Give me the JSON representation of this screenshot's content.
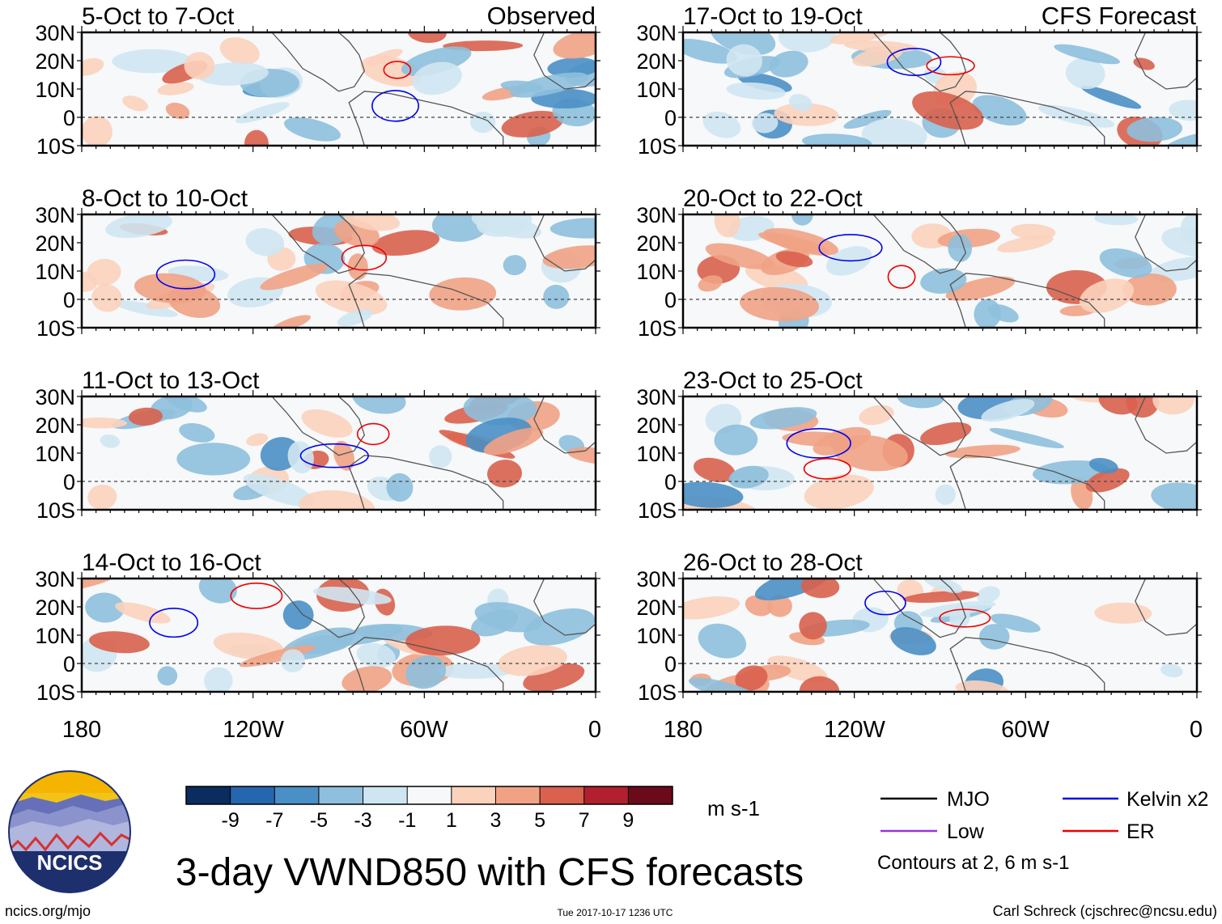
{
  "figure": {
    "title": "3-day VWND850 with CFS forecasts",
    "website": "ncics.org/mjo",
    "timestamp": "Tue 2017-10-17 1236 UTC",
    "author": "Carl Schreck (cjschrec@ncsu.edu)",
    "logo_text": "NCICS"
  },
  "columns": {
    "left_header": "Observed",
    "right_header": "CFS Forecast"
  },
  "axes": {
    "lat_labels": [
      "30N",
      "20N",
      "10N",
      "0",
      "10S"
    ],
    "lon_labels": [
      "180",
      "120W",
      "60W",
      "0"
    ]
  },
  "panels": [
    {
      "period": "5-Oct to 7-Oct",
      "source": "Observed"
    },
    {
      "period": "8-Oct to 10-Oct",
      "source": "Observed"
    },
    {
      "period": "11-Oct to 13-Oct",
      "source": "Observed"
    },
    {
      "period": "14-Oct to 16-Oct",
      "source": "Observed"
    },
    {
      "period": "17-Oct to 19-Oct",
      "source": "CFS Forecast"
    },
    {
      "period": "20-Oct to 22-Oct",
      "source": "CFS Forecast"
    },
    {
      "period": "23-Oct to 25-Oct",
      "source": "CFS Forecast"
    },
    {
      "period": "26-Oct to 28-Oct",
      "source": "CFS Forecast"
    }
  ],
  "colorbar": {
    "labels": [
      "-9",
      "-7",
      "-5",
      "-3",
      "-1",
      "1",
      "3",
      "5",
      "7",
      "9"
    ],
    "units": "m s-1",
    "colors": [
      "#0a2c5e",
      "#2566ae",
      "#4a8fc5",
      "#8ebfdc",
      "#cfe5f1",
      "#f6f8fa",
      "#fbd2bc",
      "#f1a285",
      "#d9614d",
      "#b21f2e",
      "#6b0a19"
    ]
  },
  "legend": {
    "items": [
      {
        "label": "MJO",
        "color": "#000000"
      },
      {
        "label": "Kelvin x2",
        "color": "#0000ee"
      },
      {
        "label": "Low",
        "color": "#9933dd"
      },
      {
        "label": "ER",
        "color": "#ee0000"
      }
    ],
    "note": "Contours at 2, 6 m s-1"
  }
}
